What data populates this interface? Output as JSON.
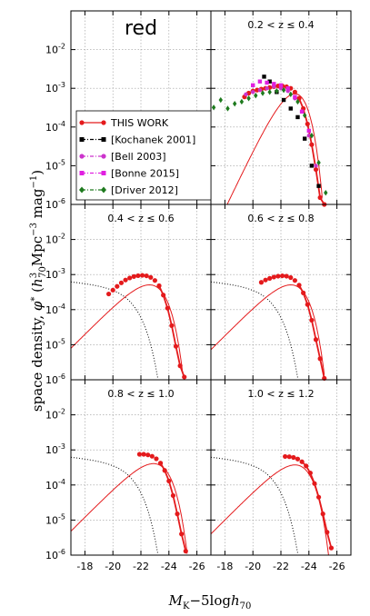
{
  "figure": {
    "panel_label": "red",
    "xlabel": "M_K−5logh_70",
    "ylabel": "space density, φ* (h_70^3 Mpc^-3 mag^-1)"
  },
  "chart_data": {
    "type": "scatter",
    "xlim": [
      -17,
      -27
    ],
    "ylim": [
      1e-06,
      0.1
    ],
    "y_scale": "log",
    "grid": true,
    "legend_placement": "left",
    "xticks": [
      "-18",
      "-20",
      "-22",
      "-24",
      "-26"
    ],
    "yticks": [
      "10-6",
      "10-5",
      "10-4",
      "10-3",
      "10-2"
    ],
    "legend": [
      {
        "label": "THIS WORK",
        "color": "#e41a1c",
        "marker": "circle",
        "line": "solid"
      },
      {
        "label": "[Kochanek 2001]",
        "color": "#000000",
        "marker": "square",
        "line": "dashdot"
      },
      {
        "label": "[Bell 2003]",
        "color": "#cc33cc",
        "marker": "circle",
        "line": "dashdot"
      },
      {
        "label": "[Bonne 2015]",
        "color": "#e020e0",
        "marker": "square",
        "line": "dashdot"
      },
      {
        "label": "[Driver 2012]",
        "color": "#1e7a1e",
        "marker": "diamond",
        "line": "dashdot"
      }
    ],
    "panels": [
      {
        "label": "red",
        "z_range": ""
      },
      {
        "label": "",
        "z_range": "0.2 < z ≤ 0.4",
        "series": {
          "THIS WORK": {
            "x": [
              -19.4,
              -19.7,
              -20.0,
              -20.3,
              -20.6,
              -20.9,
              -21.2,
              -21.5,
              -21.8,
              -22.1,
              -22.4,
              -22.7,
              -23.0,
              -23.3,
              -23.6,
              -23.9,
              -24.2,
              -24.5,
              -24.8,
              -25.1
            ],
            "y": [
              0.0006,
              0.00075,
              0.00085,
              0.0009,
              0.00095,
              0.001,
              0.00105,
              0.0011,
              0.00115,
              0.00115,
              0.0011,
              0.001,
              0.0008,
              0.00055,
              0.0003,
              0.00012,
              3.5e-05,
              8e-06,
              1.5e-06,
              1e-06
            ]
          },
          "[Kochanek 2001]": {
            "x": [
              -20.8,
              -21.2,
              -21.7,
              -22.2,
              -22.7,
              -23.2,
              -23.7,
              -24.2,
              -24.7
            ],
            "y": [
              0.002,
              0.0015,
              0.0008,
              0.0005,
              0.0003,
              0.00018,
              5e-05,
              1e-05,
              3e-06
            ]
          },
          "[Bell 2003]": {
            "x": [
              -19.5,
              -20.0,
              -20.5,
              -21.0,
              -21.5,
              -22.0,
              -22.5,
              -23.0,
              -23.5,
              -24.0,
              -24.5
            ],
            "y": [
              0.0007,
              0.0008,
              0.0009,
              0.001,
              0.0011,
              0.001,
              0.00085,
              0.00055,
              0.00025,
              6e-05,
              1e-05
            ]
          },
          "[Bonne 2015]": {
            "x": [
              -20.0,
              -20.5,
              -21.0,
              -21.5,
              -22.0,
              -22.5,
              -23.0,
              -23.5,
              -24.0
            ],
            "y": [
              0.0012,
              0.0015,
              0.0014,
              0.0013,
              0.0012,
              0.001,
              0.0006,
              0.00025,
              8e-05
            ]
          },
          "[Driver 2012]": {
            "x": [
              -17.2,
              -17.7,
              -18.2,
              -18.7,
              -19.2,
              -19.7,
              -20.2,
              -20.7,
              -21.2,
              -21.7,
              -22.2,
              -22.7,
              -23.2,
              -23.7,
              -24.2,
              -24.7,
              -25.2
            ],
            "y": [
              0.00032,
              0.0005,
              0.0003,
              0.0004,
              0.00045,
              0.00055,
              0.00065,
              0.00075,
              0.0008,
              0.00085,
              0.0009,
              0.0007,
              0.00045,
              0.0002,
              6e-05,
              1.2e-05,
              2e-06
            ]
          }
        },
        "schechter": {
          "mstar": -22.3,
          "alpha": 0.9,
          "phistar": 0.00155
        }
      },
      {
        "label": "",
        "z_range": "0.4 < z ≤ 0.6",
        "series": {
          "THIS WORK": {
            "x": [
              -19.7,
              -20.0,
              -20.3,
              -20.6,
              -20.9,
              -21.2,
              -21.5,
              -21.8,
              -22.1,
              -22.4,
              -22.7,
              -23.0,
              -23.3,
              -23.6,
              -23.9,
              -24.2,
              -24.5,
              -24.8,
              -25.1
            ],
            "y": [
              0.00028,
              0.00036,
              0.00046,
              0.00058,
              0.0007,
              0.0008,
              0.00088,
              0.00093,
              0.00095,
              0.00092,
              0.00083,
              0.00068,
              0.00048,
              0.00026,
              0.00011,
              3.5e-05,
              9e-06,
              2.5e-06,
              1.2e-06
            ]
          }
        },
        "schechter": {
          "mstar": -22.6,
          "alpha": 0.0,
          "phistar": 0.0015
        },
        "dotted": {
          "mstar": -21.3,
          "alpha": -1.1,
          "phistar": 0.00046
        }
      },
      {
        "label": "",
        "z_range": "0.6 < z ≤ 0.8",
        "series": {
          "THIS WORK": {
            "x": [
              -20.6,
              -20.9,
              -21.2,
              -21.5,
              -21.8,
              -22.1,
              -22.4,
              -22.7,
              -23.0,
              -23.3,
              -23.6,
              -23.9,
              -24.2,
              -24.5,
              -24.8,
              -25.1
            ],
            "y": [
              0.0006,
              0.0007,
              0.00078,
              0.00085,
              0.0009,
              0.00092,
              0.0009,
              0.00082,
              0.00068,
              0.0005,
              0.0003,
              0.00014,
              5e-05,
              1.4e-05,
              4e-06,
              1.1e-06
            ]
          }
        },
        "schechter": {
          "mstar": -22.7,
          "alpha": 0.0,
          "phistar": 0.0015
        },
        "dotted": {
          "mstar": -21.3,
          "alpha": -1.1,
          "phistar": 0.00046
        }
      },
      {
        "label": "",
        "z_range": "0.8 < z ≤ 1.0",
        "series": {
          "THIS WORK": {
            "x": [
              -21.9,
              -22.2,
              -22.5,
              -22.8,
              -23.1,
              -23.4,
              -23.7,
              -24.0,
              -24.3,
              -24.6,
              -24.9,
              -25.2
            ],
            "y": [
              0.00075,
              0.00075,
              0.00072,
              0.00066,
              0.00056,
              0.00042,
              0.00026,
              0.00013,
              5e-05,
              1.5e-05,
              4e-06,
              1.3e-06
            ]
          }
        },
        "schechter": {
          "mstar": -22.9,
          "alpha": 0.0,
          "phistar": 0.0012
        },
        "dotted": {
          "mstar": -21.3,
          "alpha": -1.1,
          "phistar": 0.00046
        }
      },
      {
        "label": "",
        "z_range": "1.0 < z ≤ 1.2",
        "series": {
          "THIS WORK": {
            "x": [
              -22.3,
              -22.6,
              -22.9,
              -23.2,
              -23.5,
              -23.8,
              -24.1,
              -24.4,
              -24.7,
              -25.0,
              -25.3,
              -25.6
            ],
            "y": [
              0.00065,
              0.00064,
              0.00061,
              0.00055,
              0.00046,
              0.00035,
              0.00022,
              0.00011,
              4.5e-05,
              1.5e-05,
              4.5e-06,
              1.6e-06
            ]
          }
        },
        "schechter": {
          "mstar": -23.0,
          "alpha": 0.0,
          "phistar": 0.0011
        },
        "dotted": {
          "mstar": -21.3,
          "alpha": -1.1,
          "phistar": 0.00046
        }
      }
    ]
  }
}
